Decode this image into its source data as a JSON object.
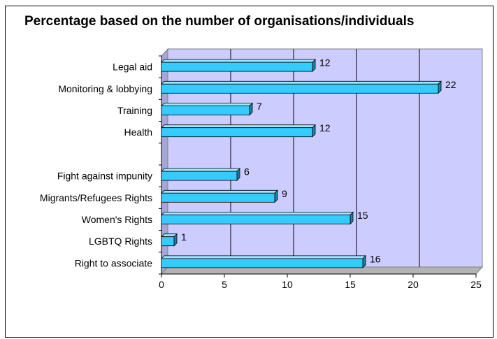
{
  "chart_data": {
    "type": "bar",
    "orientation": "horizontal",
    "title": "Percentage based on the number of organisations/individuals",
    "xlabel": "",
    "ylabel": "",
    "categories": [
      "Legal aid",
      "Monitoring & lobbying",
      "Training",
      "Health",
      "",
      "Fight against impunity",
      "Migrants/Refugees Rights",
      "Women's Rights",
      "LGBTQ Rights",
      "Right to associate"
    ],
    "values": [
      12,
      22,
      7,
      12,
      null,
      6,
      9,
      15,
      1,
      16
    ],
    "xlim": [
      0,
      25
    ],
    "xticks": [
      0,
      5,
      10,
      15,
      20,
      25
    ],
    "grid": true,
    "legend": "none",
    "colors": {
      "bar_front": "#33CCFF",
      "bar_top": "#9FE6FF",
      "bar_side": "#1A85AA",
      "plot_face": "#CCCCFF",
      "plot_side": "#A6A6D9",
      "floor": "#B3B3B3"
    }
  }
}
